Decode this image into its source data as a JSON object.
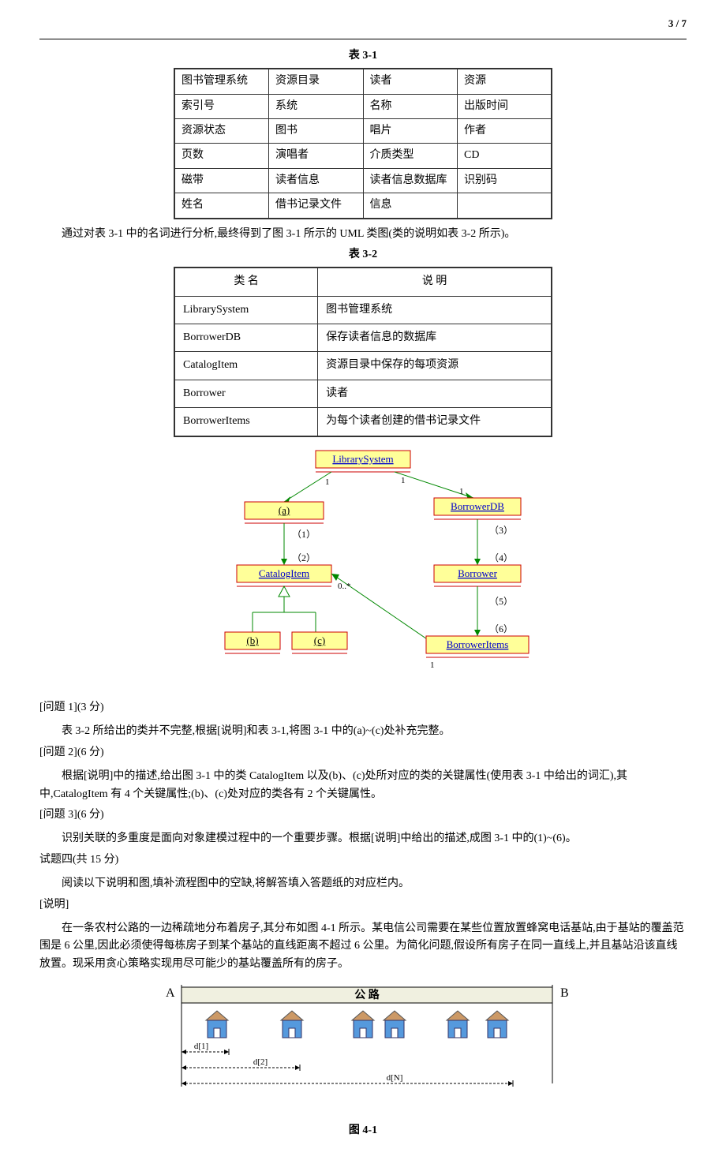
{
  "page_number": "3 / 7",
  "table31": {
    "caption": "表 3-1",
    "rows": [
      [
        "图书管理系统",
        "资源目录",
        "读者",
        "资源"
      ],
      [
        "索引号",
        "系统",
        "名称",
        "出版时间"
      ],
      [
        "资源状态",
        "图书",
        "唱片",
        "作者"
      ],
      [
        "页数",
        "演唱者",
        "介质类型",
        "CD"
      ],
      [
        "磁带",
        "读者信息",
        "读者信息数据库",
        "识别码"
      ],
      [
        "姓名",
        "借书记录文件",
        "信息",
        ""
      ]
    ]
  },
  "para_after_t31": "通过对表 3-1 中的名词进行分析,最终得到了图 3-1 所示的 UML 类图(类的说明如表 3-2 所示)。",
  "table32": {
    "caption": "表 3-2",
    "headers": [
      "类 名",
      "说 明"
    ],
    "rows": [
      [
        "LibrarySystem",
        "图书管理系统"
      ],
      [
        "BorrowerDB",
        "保存读者信息的数据库"
      ],
      [
        "CatalogItem",
        "资源目录中保存的每项资源"
      ],
      [
        "Borrower",
        "读者"
      ],
      [
        "BorrowerItems",
        "为每个读者创建的借书记录文件"
      ]
    ]
  },
  "uml": {
    "bg": "#fefefe",
    "box_fill": "#ffff99",
    "box_stroke": "#cc0000",
    "box_text": "#0000cc",
    "arrow_color": "#008800",
    "placeholder_text": "#000000",
    "boxes": {
      "LibrarySystem": "LibrarySystem",
      "BorrowerDB": "BorrowerDB",
      "CatalogItem": "CatalogItem",
      "Borrower": "Borrower",
      "BorrowerItems": "BorrowerItems",
      "a": "(a)",
      "b": "(b)",
      "c": "(c)"
    },
    "labels": {
      "l1": "（1）",
      "l2": "（2）",
      "l3": "（3）",
      "l4": "（4）",
      "l5": "（5）",
      "l6": "（6）",
      "m1a": "1",
      "m1b": "1",
      "m1c": "1",
      "m0star": "0..*",
      "m1d": "1"
    }
  },
  "q1": {
    "title": "[问题 1](3 分)",
    "body": "表 3-2 所给出的类并不完整,根据[说明]和表 3-1,将图 3-1 中的(a)~(c)处补充完整。"
  },
  "q2": {
    "title": "[问题 2](6 分)",
    "body": "根据[说明]中的描述,给出图 3-1 中的类 CatalogItem 以及(b)、(c)处所对应的类的关键属性(使用表 3-1 中给出的词汇),其中,CatalogItem 有 4 个关键属性;(b)、(c)处对应的类各有 2 个关键属性。"
  },
  "q3": {
    "title": "[问题 3](6 分)",
    "body": "识别关联的多重度是面向对象建模过程中的一个重要步骤。根据[说明]中给出的描述,成图 3-1 中的(1)~(6)。"
  },
  "q4": {
    "title": "试题四(共 15 分)",
    "line1": "阅读以下说明和图,填补流程图中的空缺,将解答填入答题纸的对应栏内。",
    "shuoming": "[说明]",
    "body": "在一条农村公路的一边稀疏地分布着房子,其分布如图 4-1 所示。某电信公司需要在某些位置放置蜂窝电话基站,由于基站的覆盖范围是 6 公里,因此必须使得每栋房子到某个基站的直线距离不超过 6 公里。为简化问题,假设所有房子在同一直线上,并且基站沿该直线放置。现采用贪心策略实现用尽可能少的基站覆盖所有的房子。"
  },
  "fig41": {
    "caption": "图 4-1",
    "A": "A",
    "B": "B",
    "road": "公   路",
    "d1": "d[1]",
    "d2": "d[2]",
    "dN": "d[N]",
    "house_color": "#5599dd",
    "roof_color": "#cc9966",
    "road_bg": "#f0f0e0"
  }
}
